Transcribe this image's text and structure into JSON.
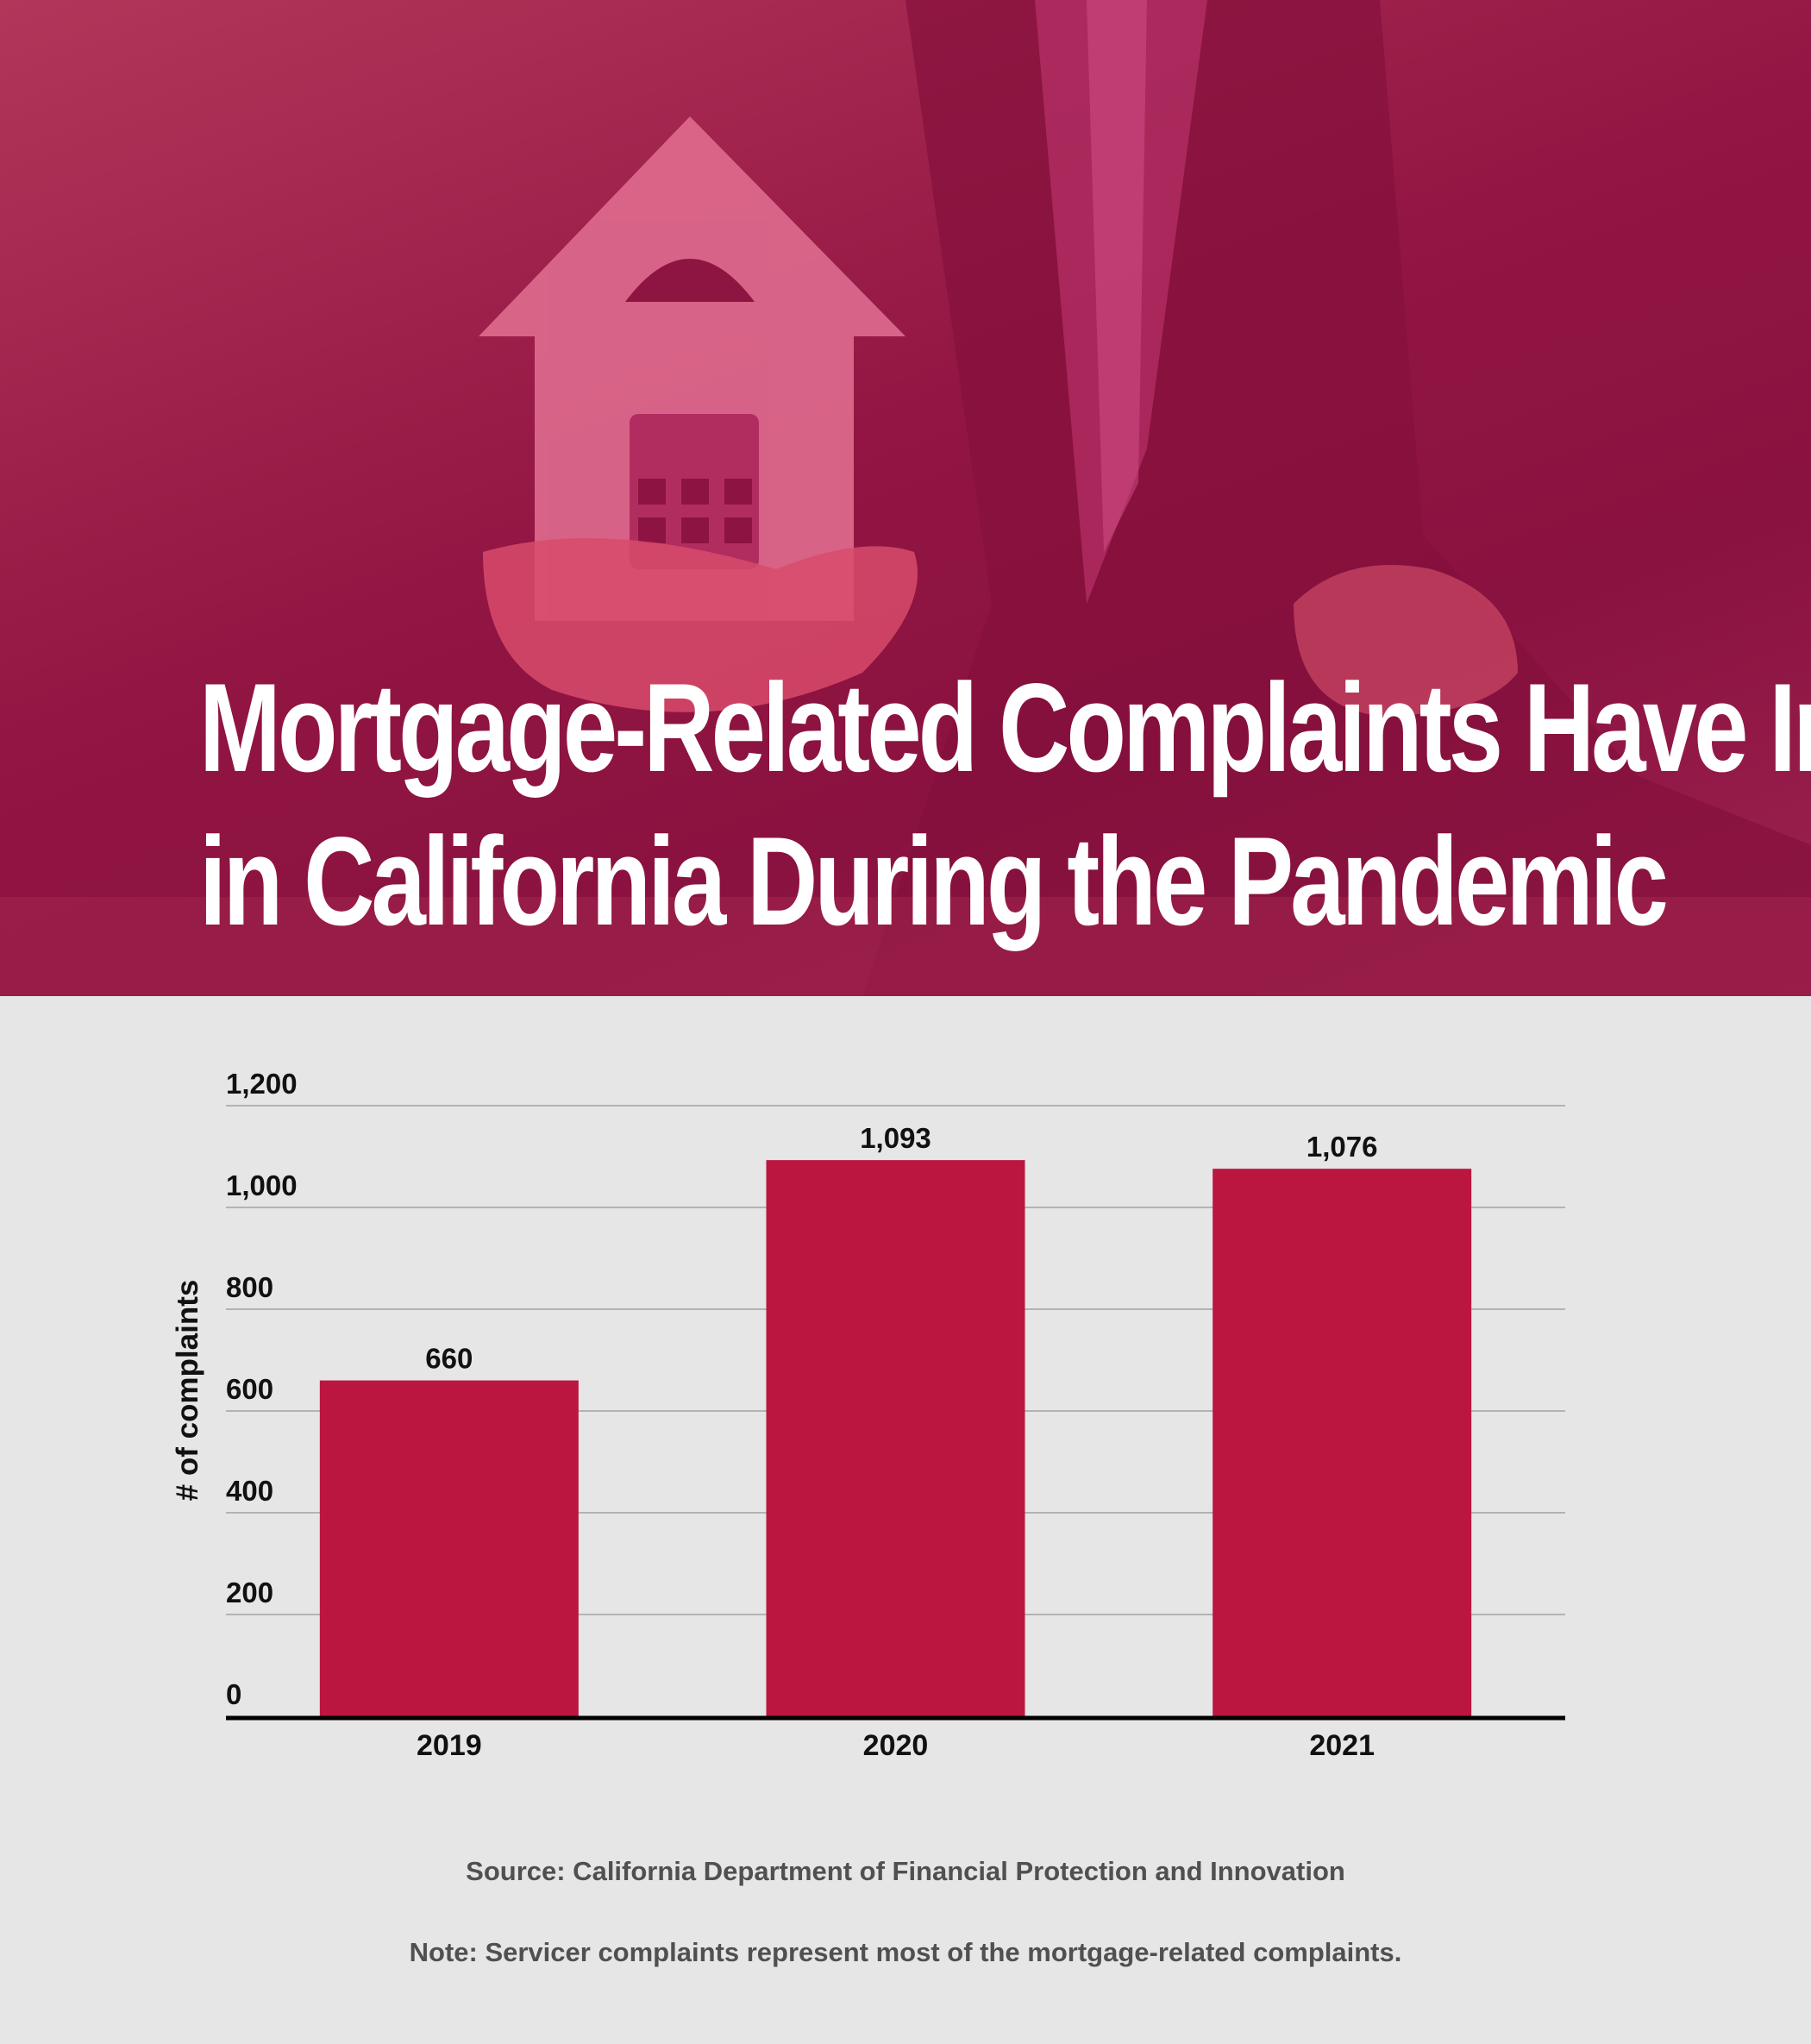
{
  "header": {
    "title_line1": "Mortgage-Related Complaints Have Increased",
    "title_line2": "in California During the Pandemic",
    "photo_icon": "house-in-hand-photo"
  },
  "colors": {
    "bar": "#bb163f",
    "hero_overlay": "#921543",
    "background": "#e6e6e6"
  },
  "chart_data": {
    "type": "bar",
    "title": "",
    "xlabel": "",
    "ylabel": "# of complaints",
    "categories": [
      "2019",
      "2020",
      "2021"
    ],
    "values": [
      660,
      1093,
      1076
    ],
    "value_labels": [
      "660",
      "1,093",
      "1,076"
    ],
    "ylim": [
      0,
      1200
    ],
    "yticks": [
      0,
      200,
      400,
      600,
      800,
      1000,
      1200
    ],
    "ytick_labels": [
      "0",
      "200",
      "400",
      "600",
      "800",
      "1,000",
      "1,200"
    ],
    "grid": true,
    "legend": "none"
  },
  "footer": {
    "source": "Source: California Department of Financial Protection and Innovation",
    "note": "Note: Servicer complaints represent most of the mortgage-related complaints."
  }
}
